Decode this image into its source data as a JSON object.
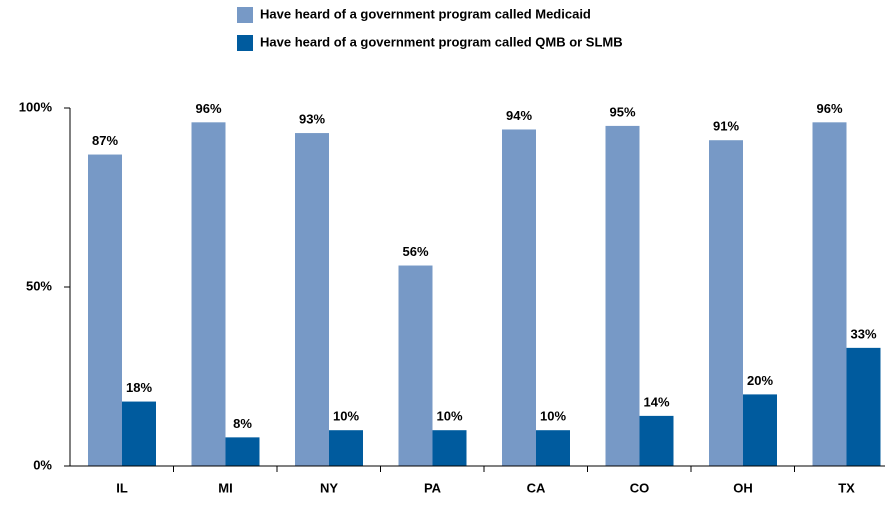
{
  "chart_data": {
    "type": "bar",
    "categories": [
      "IL",
      "MI",
      "NY",
      "PA",
      "CA",
      "CO",
      "OH",
      "TX"
    ],
    "series": [
      {
        "name": "Have heard of a government program called Medicaid",
        "color": "#7799c6",
        "values": [
          87,
          96,
          93,
          56,
          94,
          95,
          91,
          96
        ],
        "value_labels": [
          "87%",
          "96%",
          "93%",
          "56%",
          "94%",
          "95%",
          "91%",
          "96%"
        ]
      },
      {
        "name": "Have heard of a government program called QMB or SLMB",
        "color": "#005b9e",
        "values": [
          18,
          8,
          10,
          10,
          10,
          14,
          20,
          33
        ],
        "value_labels": [
          "18%",
          "8%",
          "10%",
          "10%",
          "10%",
          "14%",
          "20%",
          "33%"
        ]
      }
    ],
    "ylim": [
      0,
      100
    ],
    "yticks": [
      {
        "value": 0,
        "label": "0%"
      },
      {
        "value": 50,
        "label": "50%"
      },
      {
        "value": 100,
        "label": "100%"
      }
    ],
    "legend": "top"
  }
}
